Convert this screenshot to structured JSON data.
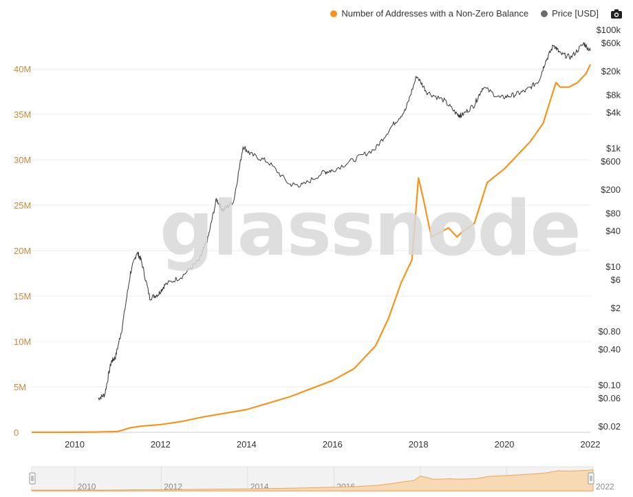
{
  "legend": {
    "addresses_label": "Number of Addresses with a Non-Zero Balance",
    "price_label": "Price [USD]",
    "addresses_color": "#f7931a",
    "price_color": "#6b6b6b",
    "camera_icon": "camera-icon"
  },
  "watermark": "glassnode",
  "chart_data": {
    "type": "line",
    "x_ticks": [
      "2010",
      "2012",
      "2014",
      "2016",
      "2018",
      "2020",
      "2022"
    ],
    "left_axis": {
      "ticks": [
        "0",
        "5M",
        "10M",
        "15M",
        "20M",
        "25M",
        "30M",
        "35M",
        "40M"
      ],
      "values": [
        0,
        5000000,
        10000000,
        15000000,
        20000000,
        25000000,
        30000000,
        35000000,
        40000000
      ],
      "range": [
        0,
        41000000
      ],
      "color": "#c58a3a"
    },
    "right_axis": {
      "scale": "log",
      "ticks": [
        "$0.02",
        "$0.06",
        "$0.10",
        "$0.40",
        "$0.80",
        "$2",
        "$6",
        "$10",
        "$40",
        "$80",
        "$200",
        "$600",
        "$1k",
        "$4k",
        "$8k",
        "$20k",
        "$60k",
        "$100k"
      ],
      "values": [
        0.02,
        0.06,
        0.1,
        0.4,
        0.8,
        2,
        6,
        10,
        40,
        80,
        200,
        600,
        1000,
        4000,
        8000,
        20000,
        60000,
        100000
      ]
    },
    "x_range": [
      "2009-01",
      "2022-01"
    ],
    "grid": "horizontal",
    "legend_position": "top-right",
    "series": [
      {
        "name": "Number of Addresses with a Non-Zero Balance",
        "axis": "left",
        "color": "#f7931a",
        "x": [
          2009.0,
          2010.0,
          2010.5,
          2011.0,
          2011.3,
          2011.5,
          2012.0,
          2012.5,
          2013.0,
          2013.5,
          2014.0,
          2014.5,
          2015.0,
          2015.5,
          2016.0,
          2016.5,
          2017.0,
          2017.3,
          2017.6,
          2017.85,
          2018.0,
          2018.1,
          2018.3,
          2018.5,
          2018.7,
          2018.9,
          2019.0,
          2019.3,
          2019.6,
          2020.0,
          2020.3,
          2020.6,
          2020.9,
          2021.0,
          2021.2,
          2021.3,
          2021.5,
          2021.7,
          2021.9,
          2022.0
        ],
        "values": [
          0,
          10000,
          30000,
          80000,
          500000,
          650000,
          850000,
          1200000,
          1700000,
          2100000,
          2500000,
          3200000,
          3900000,
          4800000,
          5700000,
          7000000,
          9500000,
          12500000,
          16500000,
          19000000,
          28000000,
          26000000,
          21500000,
          22000000,
          22500000,
          21500000,
          22000000,
          23000000,
          27500000,
          29000000,
          30500000,
          32000000,
          34000000,
          35500000,
          38500000,
          38000000,
          38000000,
          38500000,
          39500000,
          40500000
        ]
      },
      {
        "name": "Price [USD]",
        "axis": "right",
        "color": "#333333",
        "x": [
          2010.55,
          2010.7,
          2010.85,
          2010.95,
          2011.1,
          2011.3,
          2011.45,
          2011.55,
          2011.75,
          2011.95,
          2012.1,
          2012.5,
          2012.9,
          2013.1,
          2013.3,
          2013.45,
          2013.7,
          2013.92,
          2014.1,
          2014.5,
          2015.0,
          2015.3,
          2015.8,
          2016.0,
          2016.5,
          2017.0,
          2017.4,
          2017.7,
          2017.96,
          2018.2,
          2018.6,
          2018.9,
          2019.0,
          2019.3,
          2019.5,
          2019.9,
          2020.2,
          2020.5,
          2020.8,
          2020.95,
          2021.15,
          2021.3,
          2021.55,
          2021.85,
          2022.0
        ],
        "values": [
          0.06,
          0.07,
          0.25,
          0.3,
          0.9,
          8,
          18,
          13,
          3,
          3.5,
          5,
          7,
          13,
          30,
          140,
          90,
          130,
          1100,
          800,
          600,
          250,
          240,
          400,
          430,
          650,
          1000,
          2500,
          4500,
          17000,
          9000,
          6500,
          3800,
          3600,
          5500,
          11000,
          7200,
          8000,
          9500,
          14000,
          29000,
          57000,
          40000,
          35000,
          60000,
          45000
        ]
      }
    ]
  },
  "navigator": {
    "labels": [
      "2010",
      "2012",
      "2014",
      "2016",
      "2018",
      "2020",
      "2022"
    ]
  }
}
